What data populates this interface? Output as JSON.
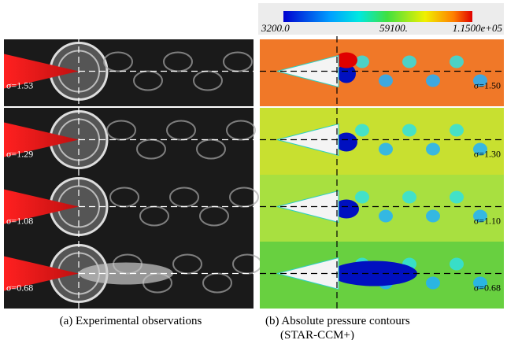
{
  "colorbar": {
    "labels": [
      "3200.0",
      "59100.",
      "1.1500e+05"
    ]
  },
  "left_panels": [
    {
      "sigma": "σ=1.53"
    },
    {
      "sigma": "σ=1.29"
    },
    {
      "sigma": "σ=1.08"
    },
    {
      "sigma": "σ=0.68"
    }
  ],
  "right_panels": [
    {
      "sigma": "σ=1.50"
    },
    {
      "sigma": "σ=1.30"
    },
    {
      "sigma": "σ=1.10"
    },
    {
      "sigma": "σ=0.68"
    }
  ],
  "captions": {
    "left": "(a) Experimental observations",
    "right_line1": "(b) Absolute pressure contours",
    "right_line2": "(STAR-CCM+)"
  }
}
